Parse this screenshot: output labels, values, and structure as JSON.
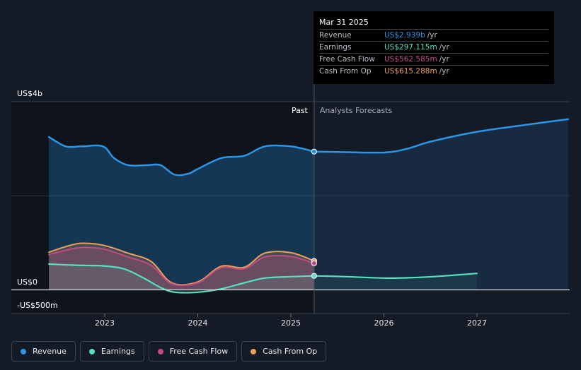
{
  "chart_data": {
    "type": "area",
    "y_unit_labels": {
      "top": "US$4b",
      "zero": "US$0",
      "bottom": "-US$500m"
    },
    "ylim": [
      -500,
      4000
    ],
    "xlim": [
      2022.15,
      2027.98
    ],
    "x_ticks": [
      2023,
      2024,
      2025,
      2026,
      2027
    ],
    "x_tick_labels": [
      "2023",
      "2024",
      "2025",
      "2026",
      "2027"
    ],
    "past_label": "Past",
    "forecast_label": "Analysts Forecasts",
    "divider_x": 2025.25,
    "highlight_range": [
      2024.25,
      2025.25
    ],
    "series": [
      {
        "name": "Revenue",
        "color": "#2b95e6",
        "x": [
          2022.4,
          2022.58,
          2022.75,
          2022.98,
          2023.1,
          2023.25,
          2023.45,
          2023.6,
          2023.75,
          2023.9,
          2024.0,
          2024.25,
          2024.5,
          2024.72,
          2025.0,
          2025.25
        ],
        "values": [
          3250,
          3050,
          3050,
          3050,
          2800,
          2650,
          2650,
          2650,
          2450,
          2470,
          2570,
          2800,
          2850,
          3050,
          3050,
          2939
        ]
      },
      {
        "name": "Revenue Forecast",
        "color": "#2b95e6",
        "x": [
          2025.25,
          2025.5,
          2026.0,
          2026.25,
          2026.5,
          2027.0,
          2027.5,
          2027.98
        ],
        "values": [
          2939,
          2930,
          2920,
          3000,
          3150,
          3360,
          3500,
          3630
        ]
      },
      {
        "name": "Earnings",
        "color": "#56e0c0",
        "x": [
          2022.4,
          2022.6,
          2022.75,
          2022.98,
          2023.2,
          2023.4,
          2023.6,
          2023.75,
          2024.0,
          2024.25,
          2024.5,
          2024.72,
          2025.0,
          2025.25
        ],
        "values": [
          550,
          530,
          520,
          510,
          450,
          270,
          50,
          -50,
          -50,
          20,
          150,
          250,
          280,
          297.115
        ]
      },
      {
        "name": "Earnings Forecast",
        "color": "#56e0c0",
        "x": [
          2025.25,
          2025.6,
          2026.0,
          2026.3,
          2026.6,
          2027.0
        ],
        "values": [
          297.115,
          280,
          250,
          260,
          290,
          350
        ]
      },
      {
        "name": "Free Cash Flow",
        "color": "#c44b82",
        "x": [
          2022.4,
          2022.6,
          2022.75,
          2022.98,
          2023.25,
          2023.5,
          2023.72,
          2024.0,
          2024.25,
          2024.5,
          2024.72,
          2025.0,
          2025.25
        ],
        "values": [
          750,
          850,
          900,
          870,
          700,
          520,
          130,
          150,
          470,
          450,
          700,
          710,
          562.585
        ]
      },
      {
        "name": "Cash From Op",
        "color": "#e8a15c",
        "x": [
          2022.4,
          2022.6,
          2022.75,
          2022.98,
          2023.25,
          2023.5,
          2023.72,
          2024.0,
          2024.25,
          2024.5,
          2024.72,
          2025.0,
          2025.25
        ],
        "values": [
          800,
          930,
          990,
          950,
          780,
          600,
          150,
          170,
          500,
          480,
          780,
          790,
          615.288
        ]
      }
    ]
  },
  "tooltip": {
    "date": "Mar 31 2025",
    "rows": [
      {
        "label": "Revenue",
        "value": "US$2.939b",
        "unit": "/yr",
        "color": "#2b95e6"
      },
      {
        "label": "Earnings",
        "value": "US$297.115m",
        "unit": "/yr",
        "color": "#56e0c0"
      },
      {
        "label": "Free Cash Flow",
        "value": "US$562.585m",
        "unit": "/yr",
        "color": "#c44b82"
      },
      {
        "label": "Cash From Op",
        "value": "US$615.288m",
        "unit": "/yr",
        "color": "#e8a15c"
      }
    ]
  },
  "legend": [
    {
      "label": "Revenue",
      "color": "#2b95e6"
    },
    {
      "label": "Earnings",
      "color": "#56e0c0"
    },
    {
      "label": "Free Cash Flow",
      "color": "#c44b82"
    },
    {
      "label": "Cash From Op",
      "color": "#e8a15c"
    }
  ]
}
